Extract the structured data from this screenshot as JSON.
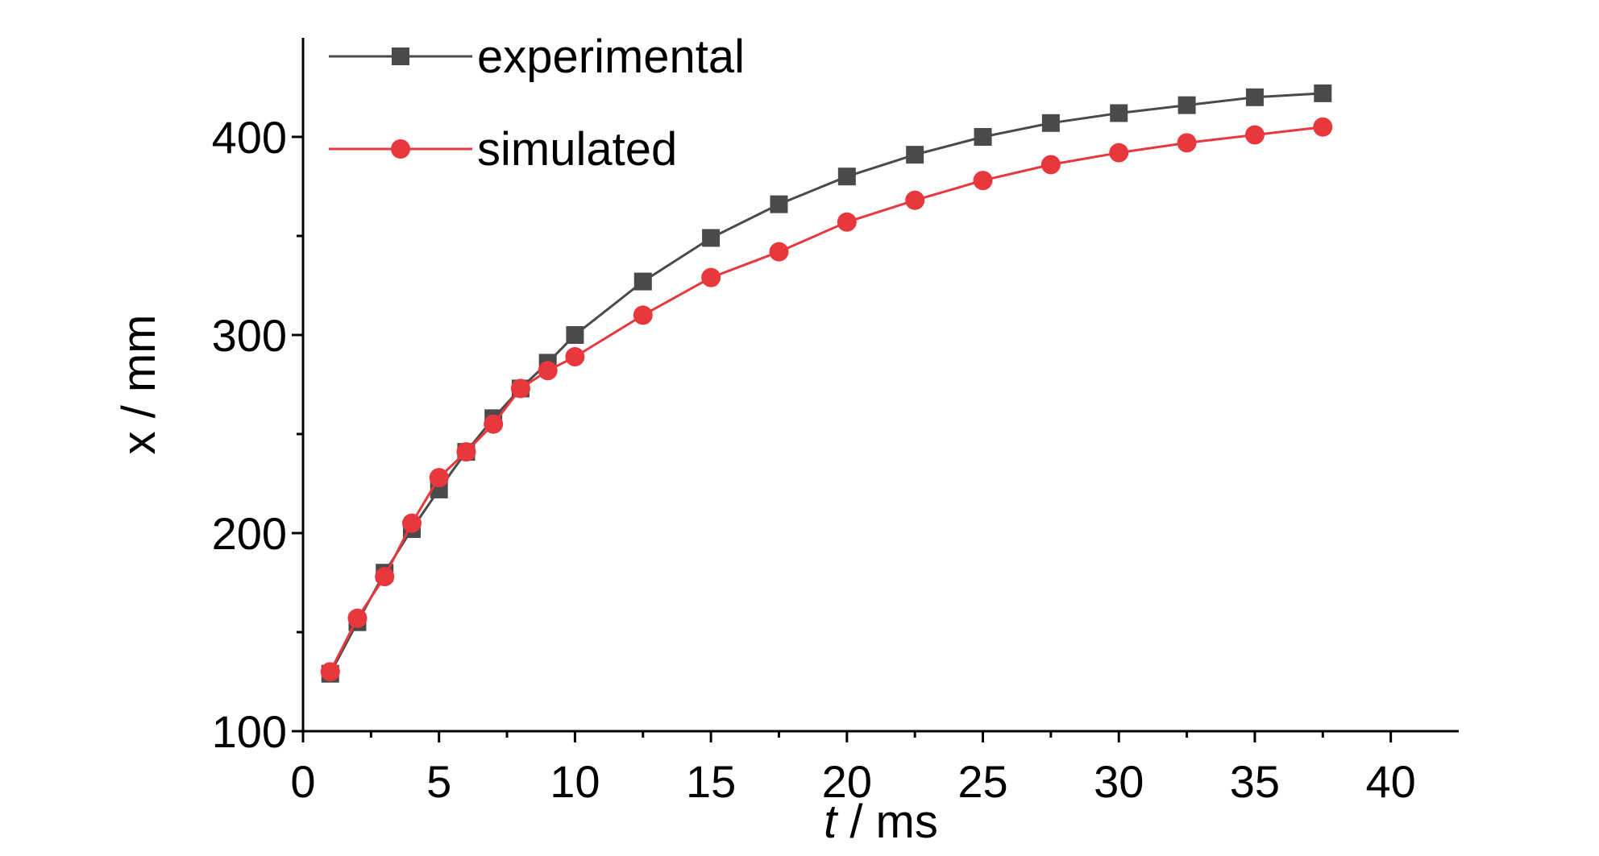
{
  "chart_data": {
    "type": "line",
    "xlabel_var": "t",
    "xlabel_unit": " / ms",
    "ylabel": "x / mm",
    "xlim": [
      0,
      42.5
    ],
    "ylim": [
      100,
      450
    ],
    "x_ticks": [
      0,
      5,
      10,
      15,
      20,
      25,
      30,
      35,
      40
    ],
    "y_ticks": [
      100,
      200,
      300,
      400
    ],
    "grid": false,
    "legend_position": "top-left",
    "series": [
      {
        "name": "experimental",
        "color": "#4a4a4a",
        "marker": "square",
        "x": [
          1,
          2,
          3,
          4,
          5,
          6,
          7,
          8,
          9,
          10,
          12.5,
          15,
          17.5,
          20,
          22.5,
          25,
          27.5,
          30,
          32.5,
          35,
          37.5
        ],
        "y": [
          129,
          155,
          180,
          202,
          222,
          241,
          258,
          273,
          286,
          300,
          327,
          349,
          366,
          380,
          391,
          400,
          407,
          412,
          416,
          420,
          422
        ]
      },
      {
        "name": "simulated",
        "color": "#e8383d",
        "marker": "circle",
        "x": [
          1,
          2,
          3,
          4,
          5,
          6,
          7,
          8,
          9,
          10,
          12.5,
          15,
          17.5,
          20,
          22.5,
          25,
          27.5,
          30,
          32.5,
          35,
          37.5
        ],
        "y": [
          130,
          157,
          178,
          205,
          228,
          241,
          255,
          273,
          282,
          289,
          310,
          329,
          342,
          357,
          368,
          378,
          386,
          392,
          397,
          401,
          405
        ]
      }
    ]
  }
}
